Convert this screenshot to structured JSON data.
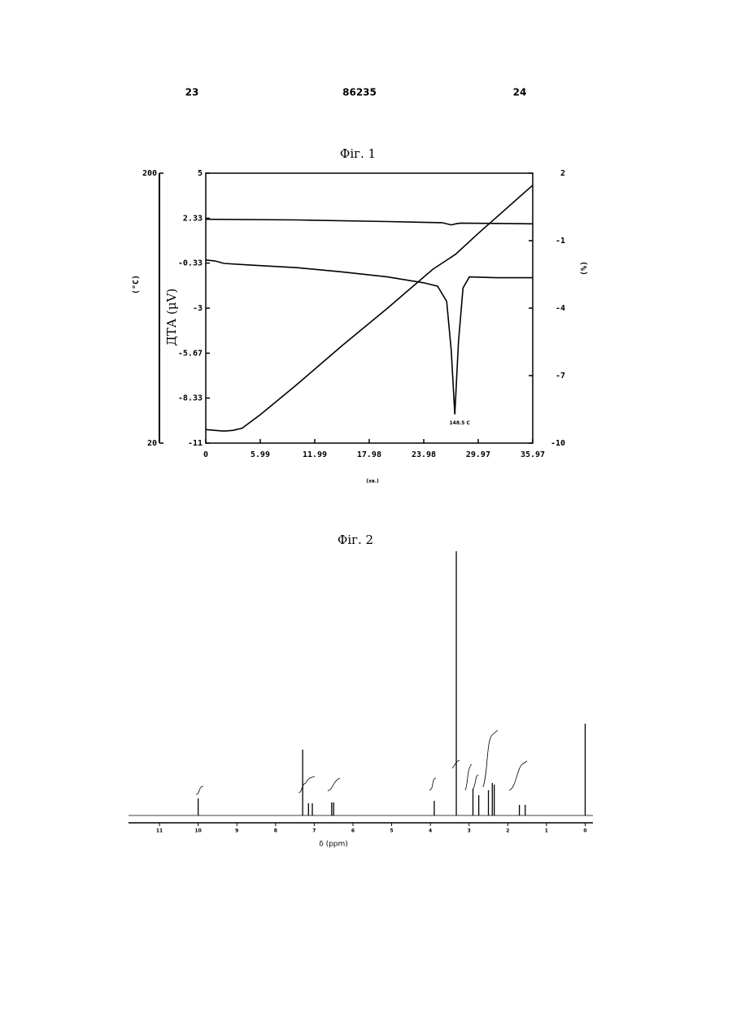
{
  "header": {
    "left_page": "23",
    "document_number": "86235",
    "right_page": "24"
  },
  "chart_data": [
    {
      "type": "line",
      "title": "Фіг. 1",
      "xlabel": "(хв.)",
      "ylabel": "(°C)",
      "y2label": "ДТА (μV)",
      "y3label": "(%)",
      "xlim": [
        0,
        35.97
      ],
      "xticks": [
        0,
        5.99,
        11.99,
        17.98,
        23.98,
        29.97,
        35.97
      ],
      "ylim": [
        20,
        200
      ],
      "yticks": [
        20,
        200
      ],
      "y2lim": [
        -11,
        5
      ],
      "y2ticks": [
        5,
        2.33,
        -0.33,
        -3,
        -5.67,
        -8.33,
        -11
      ],
      "y3lim": [
        -10,
        2
      ],
      "y3ticks": [
        2,
        -1,
        -4,
        -7,
        -10
      ],
      "annotation": "148.5 C",
      "series": [
        {
          "color": "#000000",
          "axis": "y",
          "x": [
            0,
            1,
            2,
            3,
            4,
            6,
            10,
            15,
            20,
            25,
            26.5,
            27.5,
            30,
            35.97
          ],
          "values": [
            29,
            28.5,
            28,
            28.5,
            30,
            39,
            59,
            85,
            110,
            136,
            142,
            146,
            160,
            192
          ]
        },
        {
          "color": "#000000",
          "axis": "y2",
          "x": [
            0,
            1,
            2,
            5,
            10,
            15,
            20,
            24,
            25.5,
            26.5,
            27,
            27.4,
            27.8,
            28.3,
            29,
            32,
            35.97
          ],
          "values": [
            -0.15,
            -0.2,
            -0.35,
            -0.45,
            -0.6,
            -0.85,
            -1.15,
            -1.5,
            -1.7,
            -2.6,
            -5.5,
            -9.3,
            -5.0,
            -1.8,
            -1.15,
            -1.2,
            -1.2
          ]
        },
        {
          "color": "#000000",
          "axis": "y3",
          "x": [
            0,
            10,
            20,
            26,
            27,
            27.5,
            28,
            35.97
          ],
          "values": [
            -0.05,
            -0.08,
            -0.15,
            -0.2,
            -0.3,
            -0.25,
            -0.22,
            -0.25
          ]
        }
      ]
    },
    {
      "type": "spectrum",
      "title": "Фіг. 2",
      "xlabel": "δ (ppm)",
      "xlim": [
        11.8,
        -0.2
      ],
      "xticks": [
        11,
        10,
        9,
        8,
        7,
        6,
        5,
        4,
        3,
        2,
        1,
        0
      ],
      "ylim": [
        0,
        330
      ],
      "series": [
        {
          "color": "#000000",
          "x": [
            10.0,
            7.3,
            7.15,
            7.05,
            6.55,
            6.5,
            3.9,
            3.33,
            2.9,
            2.75,
            2.5,
            2.4,
            2.35,
            1.7,
            1.55,
            0
          ],
          "values": [
            21,
            81,
            15,
            15,
            16,
            16,
            18,
            325,
            33,
            25,
            31,
            40,
            38,
            13,
            13,
            113
          ]
        }
      ]
    }
  ]
}
